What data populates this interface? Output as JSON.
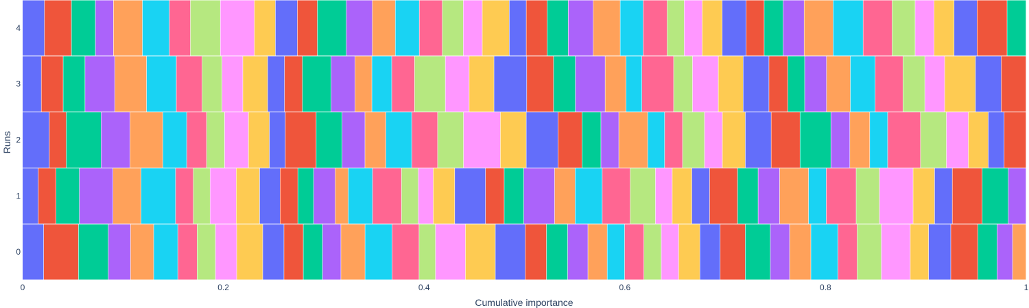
{
  "chart_data": {
    "type": "bar",
    "orientation": "horizontal",
    "barmode": "stack",
    "xlabel": "Cumulative importance",
    "ylabel": "Runs",
    "xlim": [
      0,
      1
    ],
    "x_ticks": [
      "0",
      "0.2",
      "0.4",
      "0.6",
      "0.8",
      "1"
    ],
    "y_ticks": [
      "0",
      "1",
      "2",
      "3",
      "4"
    ],
    "grid": false,
    "legend": "none",
    "palette": [
      "#636efa",
      "#EF553B",
      "#00cc96",
      "#ab63fa",
      "#FFA15A",
      "#19d3f3",
      "#FF6692",
      "#B6E880",
      "#FF97FF",
      "#FECB52"
    ],
    "runs": [
      {
        "run": "0",
        "values": [
          0.022,
          0.036,
          0.031,
          0.023,
          0.024,
          0.025,
          0.02,
          0.019,
          0.022,
          0.027,
          0.022,
          0.02,
          0.02,
          0.019,
          0.025,
          0.028,
          0.028,
          0.017,
          0.031,
          0.031,
          0.031,
          0.022,
          0.022,
          0.021,
          0.02,
          0.018,
          0.02,
          0.018,
          0.018,
          0.022,
          0.021,
          0.026,
          0.026,
          0.02,
          0.022,
          0.028,
          0.02,
          0.025,
          0.03,
          0.019,
          0.023,
          0.028,
          0.02,
          0.016,
          0.014
        ]
      },
      {
        "run": "1",
        "values": [
          0.017,
          0.019,
          0.025,
          0.036,
          0.03,
          0.037,
          0.019,
          0.018,
          0.028,
          0.025,
          0.022,
          0.019,
          0.017,
          0.023,
          0.014,
          0.026,
          0.031,
          0.018,
          0.016,
          0.023,
          0.033,
          0.02,
          0.021,
          0.033,
          0.022,
          0.029,
          0.03,
          0.027,
          0.018,
          0.021,
          0.019,
          0.03,
          0.022,
          0.023,
          0.031,
          0.019,
          0.032,
          0.025,
          0.036,
          0.023,
          0.019,
          0.032,
          0.028,
          0.019
        ]
      },
      {
        "run": "2",
        "values": [
          0.027,
          0.017,
          0.035,
          0.029,
          0.033,
          0.024,
          0.02,
          0.018,
          0.024,
          0.021,
          0.016,
          0.031,
          0.026,
          0.023,
          0.021,
          0.026,
          0.026,
          0.026,
          0.037,
          0.026,
          0.032,
          0.024,
          0.019,
          0.018,
          0.029,
          0.017,
          0.018,
          0.022,
          0.018,
          0.023,
          0.026,
          0.029,
          0.031,
          0.019,
          0.02,
          0.018,
          0.033,
          0.026,
          0.022,
          0.02,
          0.016,
          0.022
        ]
      },
      {
        "run": "3",
        "values": [
          0.019,
          0.022,
          0.022,
          0.03,
          0.032,
          0.03,
          0.026,
          0.02,
          0.021,
          0.025,
          0.017,
          0.018,
          0.029,
          0.024,
          0.017,
          0.02,
          0.023,
          0.031,
          0.024,
          0.025,
          0.033,
          0.027,
          0.022,
          0.03,
          0.021,
          0.016,
          0.032,
          0.019,
          0.026,
          0.025,
          0.026,
          0.019,
          0.017,
          0.022,
          0.024,
          0.025,
          0.028,
          0.022,
          0.02,
          0.031,
          0.026,
          0.025
        ]
      },
      {
        "run": "4",
        "values": [
          0.022,
          0.027,
          0.024,
          0.018,
          0.029,
          0.027,
          0.021,
          0.03,
          0.034,
          0.021,
          0.022,
          0.02,
          0.029,
          0.026,
          0.023,
          0.024,
          0.023,
          0.021,
          0.019,
          0.027,
          0.017,
          0.021,
          0.021,
          0.025,
          0.027,
          0.023,
          0.024,
          0.017,
          0.018,
          0.02,
          0.024,
          0.018,
          0.019,
          0.021,
          0.029,
          0.03,
          0.029,
          0.023,
          0.019,
          0.02,
          0.023,
          0.03,
          0.019
        ]
      }
    ]
  }
}
